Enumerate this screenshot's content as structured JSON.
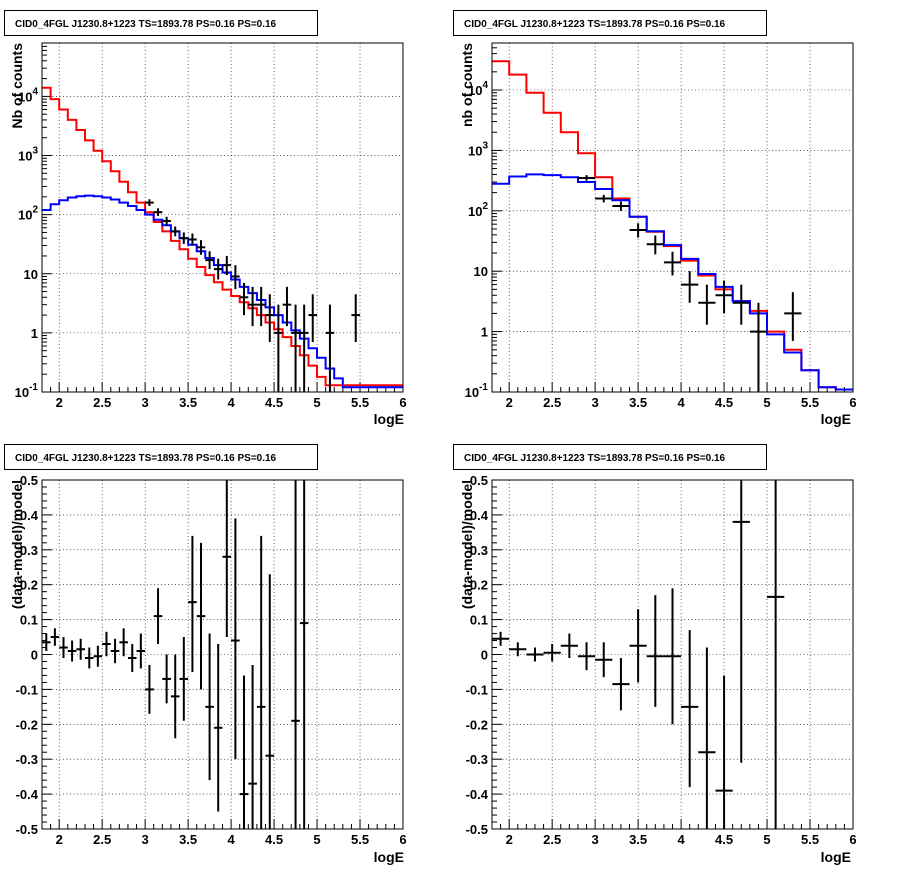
{
  "chart_data": [
    {
      "type": "line",
      "title": "CID0_4FGL J1230.8+1223 TS=1893.78 PS=0.16 PS=0.16",
      "xlabel": "logE",
      "ylabel": "Nb of counts",
      "xlim": [
        1.8,
        6
      ],
      "ylim": [
        0.1,
        80000
      ],
      "yscale": "log",
      "grid": true,
      "x_ticks": [
        "2",
        "2.5",
        "3",
        "3.5",
        "4",
        "4.5",
        "5",
        "5.5",
        "6"
      ],
      "x_tick_values": [
        2,
        2.5,
        3,
        3.5,
        4,
        4.5,
        5,
        5.5,
        6
      ],
      "y_ticks": [
        "10^-1",
        "1",
        "10",
        "10^2",
        "10^3",
        "10^4"
      ],
      "y_tick_values": [
        0.1,
        1,
        10,
        100,
        1000,
        10000
      ],
      "bin_edges_start": 1.8,
      "bin_width": 0.1,
      "series": [
        {
          "kind": "hist",
          "color": "#ff0000",
          "values": [
            14000,
            9000,
            6000,
            4000,
            2700,
            1800,
            1200,
            800,
            540,
            360,
            240,
            160,
            110,
            75,
            52,
            36,
            26,
            18,
            13,
            9.5,
            7.2,
            5.4,
            4.2,
            3.3,
            2.6,
            2.0,
            1.5,
            1.15,
            0.85,
            0.6,
            0.42,
            0.28,
            0.18,
            0.13,
            0.13,
            0.13,
            0.13,
            0.13,
            0.13,
            0.13,
            0.13,
            0.13
          ]
        },
        {
          "kind": "hist",
          "color": "#0000ff",
          "values": [
            120,
            150,
            175,
            195,
            205,
            210,
            205,
            195,
            180,
            160,
            140,
            120,
            100,
            82,
            66,
            52,
            40,
            31,
            24,
            18.5,
            14,
            10.5,
            8,
            6,
            4.7,
            3.6,
            2.7,
            2.0,
            1.5,
            1.1,
            0.8,
            0.55,
            0.38,
            0.25,
            0.17,
            0.12,
            0.12,
            0.12,
            0.12,
            0.12,
            0.12,
            0.12
          ]
        },
        {
          "kind": "points",
          "color": "#000000",
          "points": [
            {
              "x": 3.05,
              "y": 160,
              "lo": 140,
              "hi": 182
            },
            {
              "x": 3.15,
              "y": 110,
              "lo": 95,
              "hi": 128
            },
            {
              "x": 3.25,
              "y": 78,
              "lo": 66,
              "hi": 92
            },
            {
              "x": 3.35,
              "y": 52,
              "lo": 43,
              "hi": 63
            },
            {
              "x": 3.45,
              "y": 40,
              "lo": 32,
              "hi": 50
            },
            {
              "x": 3.55,
              "y": 38,
              "lo": 30,
              "hi": 48
            },
            {
              "x": 3.65,
              "y": 28,
              "lo": 21,
              "hi": 37
            },
            {
              "x": 3.75,
              "y": 17,
              "lo": 12,
              "hi": 24
            },
            {
              "x": 3.85,
              "y": 12,
              "lo": 8,
              "hi": 18
            },
            {
              "x": 3.95,
              "y": 14,
              "lo": 9.5,
              "hi": 20
            },
            {
              "x": 4.05,
              "y": 9,
              "lo": 5.5,
              "hi": 14
            },
            {
              "x": 4.15,
              "y": 4,
              "lo": 2,
              "hi": 7
            },
            {
              "x": 4.25,
              "y": 3,
              "lo": 1.3,
              "hi": 6
            },
            {
              "x": 4.35,
              "y": 3,
              "lo": 1.3,
              "hi": 6
            },
            {
              "x": 4.45,
              "y": 2,
              "lo": 0.7,
              "hi": 4.5
            },
            {
              "x": 4.55,
              "y": 1,
              "lo": 0.1,
              "hi": 3
            },
            {
              "x": 4.65,
              "y": 3,
              "lo": 1.3,
              "hi": 6
            },
            {
              "x": 4.75,
              "y": 1,
              "lo": 0.1,
              "hi": 3
            },
            {
              "x": 4.85,
              "y": 1,
              "lo": 0.1,
              "hi": 3
            },
            {
              "x": 4.95,
              "y": 2,
              "lo": 0.7,
              "hi": 4.5
            },
            {
              "x": 5.15,
              "y": 1,
              "lo": 0.1,
              "hi": 3
            },
            {
              "x": 5.45,
              "y": 2,
              "lo": 0.7,
              "hi": 4.5
            }
          ]
        }
      ]
    },
    {
      "type": "line",
      "title": "CID0_4FGL J1230.8+1223 TS=1893.78 PS=0.16 PS=0.16",
      "xlabel": "logE",
      "ylabel": "nb of counts",
      "xlim": [
        1.8,
        6
      ],
      "ylim": [
        0.1,
        60000
      ],
      "yscale": "log",
      "grid": true,
      "x_ticks": [
        "2",
        "2.5",
        "3",
        "3.5",
        "4",
        "4.5",
        "5",
        "5.5",
        "6"
      ],
      "x_tick_values": [
        2,
        2.5,
        3,
        3.5,
        4,
        4.5,
        5,
        5.5,
        6
      ],
      "y_ticks": [
        "10^-1",
        "1",
        "10",
        "10^2",
        "10^3",
        "10^4"
      ],
      "y_tick_values": [
        0.1,
        1,
        10,
        100,
        1000,
        10000
      ],
      "bin_edges_start": 1.8,
      "bin_width": 0.2,
      "series": [
        {
          "kind": "hist",
          "color": "#ff0000",
          "values": [
            30000,
            18000,
            9000,
            4200,
            2000,
            900,
            360,
            160,
            80,
            45,
            26,
            15,
            8.5,
            5,
            3.2,
            2.2,
            1.0,
            0.5,
            0.23,
            0.12,
            0.11
          ]
        },
        {
          "kind": "hist",
          "color": "#0000ff",
          "values": [
            280,
            370,
            400,
            390,
            360,
            300,
            230,
            150,
            80,
            46,
            27,
            16,
            9,
            5.5,
            3.2,
            2.0,
            0.9,
            0.45,
            0.23,
            0.12,
            0.11
          ]
        },
        {
          "kind": "points",
          "color": "#000000",
          "points": [
            {
              "x": 2.9,
              "y": 350,
              "lo": 315,
              "hi": 390
            },
            {
              "x": 3.1,
              "y": 160,
              "lo": 138,
              "hi": 184
            },
            {
              "x": 3.3,
              "y": 120,
              "lo": 100,
              "hi": 142
            },
            {
              "x": 3.5,
              "y": 48,
              "lo": 36,
              "hi": 62
            },
            {
              "x": 3.7,
              "y": 28,
              "lo": 19,
              "hi": 39
            },
            {
              "x": 3.9,
              "y": 14,
              "lo": 8.5,
              "hi": 21
            },
            {
              "x": 4.1,
              "y": 6,
              "lo": 3,
              "hi": 10
            },
            {
              "x": 4.3,
              "y": 3,
              "lo": 1.3,
              "hi": 6
            },
            {
              "x": 4.5,
              "y": 4,
              "lo": 2,
              "hi": 7
            },
            {
              "x": 4.7,
              "y": 3,
              "lo": 1.3,
              "hi": 6
            },
            {
              "x": 4.9,
              "y": 1,
              "lo": 0.1,
              "hi": 3
            },
            {
              "x": 5.3,
              "y": 2,
              "lo": 0.7,
              "hi": 4.5
            }
          ]
        }
      ]
    },
    {
      "type": "scatter",
      "title": "CID0_4FGL J1230.8+1223 TS=1893.78 PS=0.16 PS=0.16",
      "xlabel": "logE",
      "ylabel": "(data-model)/model",
      "xlim": [
        1.8,
        6
      ],
      "ylim": [
        -0.5,
        0.5
      ],
      "grid": true,
      "x_ticks": [
        "2",
        "2.5",
        "3",
        "3.5",
        "4",
        "4.5",
        "5",
        "5.5",
        "6"
      ],
      "x_tick_values": [
        2,
        2.5,
        3,
        3.5,
        4,
        4.5,
        5,
        5.5,
        6
      ],
      "y_ticks": [
        "-0.5",
        "-0.4",
        "-0.3",
        "-0.2",
        "-0.1",
        "0",
        "0.1",
        "0.2",
        "0.3",
        "0.4",
        "0.5"
      ],
      "y_tick_values": [
        -0.5,
        -0.4,
        -0.3,
        -0.2,
        -0.1,
        0,
        0.1,
        0.2,
        0.3,
        0.4,
        0.5
      ],
      "x_halfwidth": 0.05,
      "points": [
        {
          "x": 1.85,
          "y": 0.035,
          "lo": 0.01,
          "hi": 0.06
        },
        {
          "x": 1.95,
          "y": 0.05,
          "lo": 0.025,
          "hi": 0.075
        },
        {
          "x": 2.05,
          "y": 0.02,
          "lo": -0.01,
          "hi": 0.05
        },
        {
          "x": 2.15,
          "y": 0.01,
          "lo": -0.02,
          "hi": 0.04
        },
        {
          "x": 2.25,
          "y": 0.015,
          "lo": -0.015,
          "hi": 0.045
        },
        {
          "x": 2.35,
          "y": -0.01,
          "lo": -0.04,
          "hi": 0.02
        },
        {
          "x": 2.45,
          "y": -0.005,
          "lo": -0.035,
          "hi": 0.025
        },
        {
          "x": 2.55,
          "y": 0.03,
          "lo": -0.005,
          "hi": 0.065
        },
        {
          "x": 2.65,
          "y": 0.01,
          "lo": -0.025,
          "hi": 0.045
        },
        {
          "x": 2.75,
          "y": 0.035,
          "lo": -0.005,
          "hi": 0.075
        },
        {
          "x": 2.85,
          "y": -0.01,
          "lo": -0.05,
          "hi": 0.03
        },
        {
          "x": 2.95,
          "y": 0.01,
          "lo": -0.04,
          "hi": 0.06
        },
        {
          "x": 3.05,
          "y": -0.1,
          "lo": -0.17,
          "hi": -0.03
        },
        {
          "x": 3.15,
          "y": 0.11,
          "lo": 0.03,
          "hi": 0.19
        },
        {
          "x": 3.25,
          "y": -0.07,
          "lo": -0.14,
          "hi": 0.0
        },
        {
          "x": 3.35,
          "y": -0.12,
          "lo": -0.24,
          "hi": -0.0
        },
        {
          "x": 3.45,
          "y": -0.07,
          "lo": -0.19,
          "hi": 0.05
        },
        {
          "x": 3.55,
          "y": 0.15,
          "lo": -0.05,
          "hi": 0.34
        },
        {
          "x": 3.65,
          "y": 0.11,
          "lo": -0.1,
          "hi": 0.32
        },
        {
          "x": 3.75,
          "y": -0.15,
          "lo": -0.36,
          "hi": 0.06
        },
        {
          "x": 3.85,
          "y": -0.21,
          "lo": -0.45,
          "hi": 0.03
        },
        {
          "x": 3.95,
          "y": 0.28,
          "lo": 0.05,
          "hi": 0.5
        },
        {
          "x": 4.05,
          "y": 0.04,
          "lo": -0.3,
          "hi": 0.39
        },
        {
          "x": 4.15,
          "y": -0.4,
          "lo": -0.5,
          "hi": -0.06
        },
        {
          "x": 4.25,
          "y": -0.37,
          "lo": -0.5,
          "hi": -0.03
        },
        {
          "x": 4.35,
          "y": -0.15,
          "lo": -0.5,
          "hi": 0.34
        },
        {
          "x": 4.45,
          "y": -0.29,
          "lo": -0.5,
          "hi": 0.23
        },
        {
          "x": 4.75,
          "y": -0.19,
          "lo": -0.5,
          "hi": 0.5
        },
        {
          "x": 4.85,
          "y": 0.09,
          "lo": -0.5,
          "hi": 0.5
        }
      ]
    },
    {
      "type": "scatter",
      "title": "CID0_4FGL J1230.8+1223 TS=1893.78 PS=0.16 PS=0.16",
      "xlabel": "logE",
      "ylabel": "(data-model)/model",
      "xlim": [
        1.8,
        6
      ],
      "ylim": [
        -0.5,
        0.5
      ],
      "grid": true,
      "x_ticks": [
        "2",
        "2.5",
        "3",
        "3.5",
        "4",
        "4.5",
        "5",
        "5.5",
        "6"
      ],
      "x_tick_values": [
        2,
        2.5,
        3,
        3.5,
        4,
        4.5,
        5,
        5.5,
        6
      ],
      "y_ticks": [
        "-0.5",
        "-0.4",
        "-0.3",
        "-0.2",
        "-0.1",
        "0",
        "0.1",
        "0.2",
        "0.3",
        "0.4",
        "0.5"
      ],
      "y_tick_values": [
        -0.5,
        -0.4,
        -0.3,
        -0.2,
        -0.1,
        0,
        0.1,
        0.2,
        0.3,
        0.4,
        0.5
      ],
      "x_halfwidth": 0.1,
      "points": [
        {
          "x": 1.9,
          "y": 0.045,
          "lo": 0.025,
          "hi": 0.065
        },
        {
          "x": 2.1,
          "y": 0.015,
          "lo": -0.005,
          "hi": 0.035
        },
        {
          "x": 2.3,
          "y": 0.0,
          "lo": -0.02,
          "hi": 0.02
        },
        {
          "x": 2.5,
          "y": 0.005,
          "lo": -0.02,
          "hi": 0.03
        },
        {
          "x": 2.7,
          "y": 0.025,
          "lo": -0.01,
          "hi": 0.06
        },
        {
          "x": 2.9,
          "y": -0.005,
          "lo": -0.045,
          "hi": 0.035
        },
        {
          "x": 3.1,
          "y": -0.015,
          "lo": -0.065,
          "hi": 0.035
        },
        {
          "x": 3.3,
          "y": -0.085,
          "lo": -0.16,
          "hi": -0.01
        },
        {
          "x": 3.5,
          "y": 0.025,
          "lo": -0.08,
          "hi": 0.13
        },
        {
          "x": 3.7,
          "y": -0.005,
          "lo": -0.15,
          "hi": 0.17
        },
        {
          "x": 3.9,
          "y": -0.005,
          "lo": -0.2,
          "hi": 0.19
        },
        {
          "x": 4.1,
          "y": -0.15,
          "lo": -0.38,
          "hi": 0.07
        },
        {
          "x": 4.3,
          "y": -0.28,
          "lo": -0.5,
          "hi": 0.02
        },
        {
          "x": 4.5,
          "y": -0.39,
          "lo": -0.5,
          "hi": -0.06
        },
        {
          "x": 4.7,
          "y": 0.38,
          "lo": -0.31,
          "hi": 0.5
        },
        {
          "x": 5.1,
          "y": 0.165,
          "lo": -0.5,
          "hi": 0.5
        }
      ]
    }
  ]
}
